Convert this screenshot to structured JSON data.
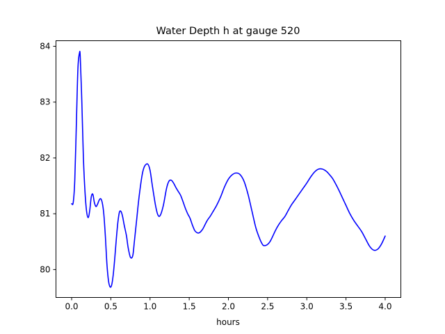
{
  "chart_data": {
    "type": "line",
    "title": "Water Depth h at gauge 520",
    "xlabel": "hours",
    "ylabel": "",
    "xlim": [
      -0.2,
      4.2
    ],
    "ylim": [
      79.5,
      84.1
    ],
    "xticks": [
      0.0,
      0.5,
      1.0,
      1.5,
      2.0,
      2.5,
      3.0,
      3.5,
      4.0
    ],
    "xtick_labels": [
      "0.0",
      "0.5",
      "1.0",
      "1.5",
      "2.0",
      "2.5",
      "3.0",
      "3.5",
      "4.0"
    ],
    "yticks": [
      80,
      81,
      82,
      83,
      84
    ],
    "ytick_labels": [
      "80",
      "81",
      "82",
      "83",
      "84"
    ],
    "grid": false,
    "series": [
      {
        "color": "#0000ff",
        "x": [
          0.0,
          0.02,
          0.04,
          0.06,
          0.08,
          0.1,
          0.11,
          0.13,
          0.15,
          0.17,
          0.19,
          0.21,
          0.23,
          0.25,
          0.27,
          0.29,
          0.31,
          0.33,
          0.35,
          0.37,
          0.39,
          0.41,
          0.43,
          0.45,
          0.47,
          0.49,
          0.51,
          0.53,
          0.55,
          0.57,
          0.59,
          0.61,
          0.63,
          0.65,
          0.67,
          0.7,
          0.72,
          0.75,
          0.78,
          0.8,
          0.83,
          0.86,
          0.9,
          0.93,
          0.97,
          1.0,
          1.03,
          1.07,
          1.1,
          1.13,
          1.17,
          1.21,
          1.24,
          1.27,
          1.3,
          1.33,
          1.36,
          1.39,
          1.42,
          1.45,
          1.48,
          1.51,
          1.54,
          1.57,
          1.6,
          1.63,
          1.67,
          1.7,
          1.73,
          1.77,
          1.8,
          1.85,
          1.9,
          1.95,
          2.0,
          2.05,
          2.1,
          2.15,
          2.2,
          2.25,
          2.3,
          2.35,
          2.4,
          2.44,
          2.47,
          2.5,
          2.53,
          2.56,
          2.6,
          2.64,
          2.68,
          2.72,
          2.76,
          2.8,
          2.85,
          2.9,
          2.95,
          3.0,
          3.05,
          3.1,
          3.15,
          3.2,
          3.25,
          3.29,
          3.33,
          3.37,
          3.41,
          3.45,
          3.5,
          3.55,
          3.6,
          3.65,
          3.7,
          3.75,
          3.8,
          3.85,
          3.9,
          3.95,
          4.0
        ],
        "y": [
          81.18,
          81.2,
          81.6,
          82.6,
          83.6,
          83.88,
          83.8,
          83.0,
          82.0,
          81.4,
          81.05,
          80.93,
          81.05,
          81.3,
          81.35,
          81.2,
          81.13,
          81.17,
          81.24,
          81.27,
          81.2,
          81.0,
          80.6,
          80.1,
          79.8,
          79.69,
          79.72,
          79.9,
          80.2,
          80.55,
          80.85,
          81.03,
          81.04,
          80.95,
          80.8,
          80.6,
          80.4,
          80.22,
          80.25,
          80.5,
          80.9,
          81.3,
          81.7,
          81.85,
          81.89,
          81.78,
          81.5,
          81.15,
          80.98,
          80.97,
          81.15,
          81.45,
          81.58,
          81.6,
          81.55,
          81.47,
          81.4,
          81.33,
          81.22,
          81.1,
          81.0,
          80.92,
          80.8,
          80.7,
          80.66,
          80.66,
          80.72,
          80.8,
          80.88,
          80.96,
          81.03,
          81.15,
          81.3,
          81.48,
          81.62,
          81.7,
          81.73,
          81.7,
          81.58,
          81.35,
          81.05,
          80.75,
          80.55,
          80.44,
          80.43,
          80.45,
          80.5,
          80.58,
          80.7,
          80.8,
          80.88,
          80.95,
          81.05,
          81.15,
          81.25,
          81.35,
          81.45,
          81.55,
          81.66,
          81.75,
          81.8,
          81.8,
          81.76,
          81.7,
          81.63,
          81.53,
          81.42,
          81.3,
          81.15,
          81.0,
          80.88,
          80.78,
          80.68,
          80.55,
          80.42,
          80.35,
          80.36,
          80.45,
          80.6
        ]
      }
    ]
  }
}
